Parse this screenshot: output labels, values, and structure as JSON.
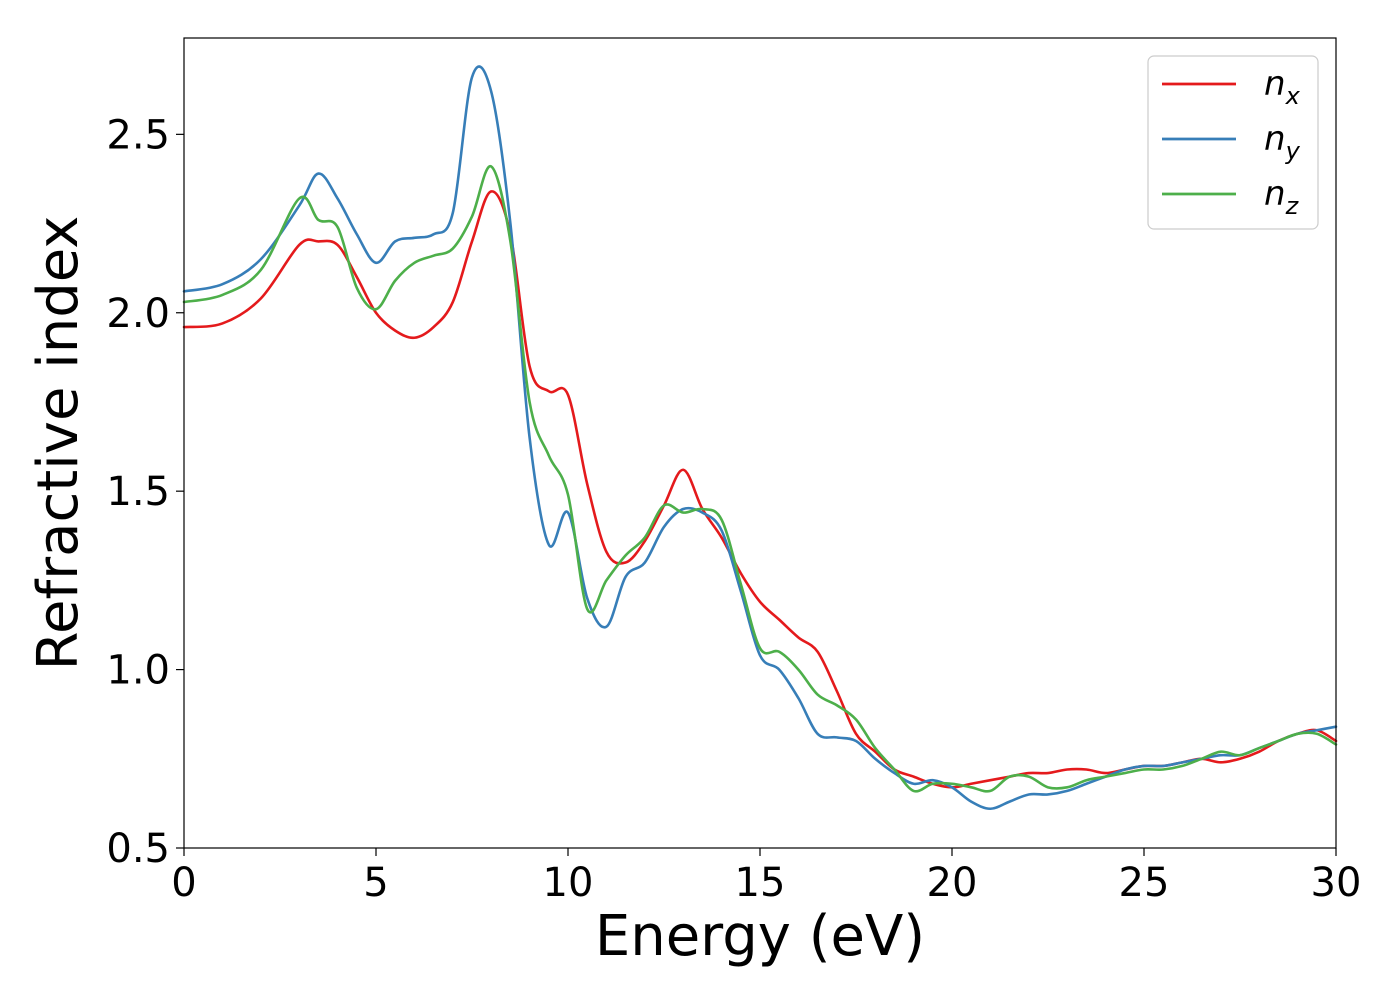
{
  "chart_data": {
    "type": "line",
    "title": "",
    "xlabel": "Energy (eV)",
    "ylabel": "Refractive index",
    "xlim": [
      0,
      30
    ],
    "ylim": [
      0.5,
      2.77
    ],
    "xticks": [
      0,
      5,
      10,
      15,
      20,
      25,
      30
    ],
    "xtick_labels": [
      "0",
      "5",
      "10",
      "15",
      "20",
      "25",
      "30"
    ],
    "yticks": [
      0.5,
      1.0,
      1.5,
      2.0,
      2.5
    ],
    "ytick_labels": [
      "0.5",
      "1.0",
      "1.5",
      "2.0",
      "2.5"
    ],
    "grid": false,
    "legend_position": "top-right",
    "series": [
      {
        "name": "n",
        "subscript": "x",
        "color": "#e41a1c",
        "x": [
          0,
          1,
          2,
          3,
          3.5,
          4,
          4.5,
          5,
          5.5,
          6,
          6.5,
          7,
          7.5,
          8,
          8.5,
          9,
          9.5,
          10,
          10.5,
          11,
          11.5,
          12,
          12.5,
          13,
          13.5,
          14,
          14.5,
          15,
          15.5,
          16,
          16.5,
          17,
          17.5,
          18,
          18.5,
          19,
          19.5,
          20,
          20.5,
          21,
          21.5,
          22,
          22.5,
          23,
          23.5,
          24,
          24.5,
          25,
          25.5,
          26,
          26.5,
          27,
          27.5,
          28,
          28.5,
          29,
          29.5,
          30
        ],
        "y": [
          1.96,
          1.97,
          2.04,
          2.19,
          2.2,
          2.19,
          2.1,
          2.0,
          1.95,
          1.93,
          1.96,
          2.03,
          2.2,
          2.34,
          2.22,
          1.85,
          1.78,
          1.77,
          1.52,
          1.33,
          1.3,
          1.36,
          1.46,
          1.56,
          1.45,
          1.37,
          1.27,
          1.19,
          1.14,
          1.09,
          1.05,
          0.94,
          0.82,
          0.77,
          0.72,
          0.7,
          0.68,
          0.67,
          0.68,
          0.69,
          0.7,
          0.71,
          0.71,
          0.72,
          0.72,
          0.71,
          0.72,
          0.73,
          0.73,
          0.74,
          0.75,
          0.74,
          0.75,
          0.77,
          0.8,
          0.82,
          0.83,
          0.8
        ]
      },
      {
        "name": "n",
        "subscript": "y",
        "color": "#377eb8",
        "x": [
          0,
          1,
          2,
          3,
          3.5,
          4,
          4.5,
          5,
          5.5,
          6,
          6.5,
          7,
          7.5,
          8,
          8.5,
          9,
          9.5,
          10,
          10.5,
          11,
          11.5,
          12,
          12.5,
          13,
          13.5,
          14,
          14.5,
          15,
          15.5,
          16,
          16.5,
          17,
          17.5,
          18,
          18.5,
          19,
          19.5,
          20,
          20.5,
          21,
          21.5,
          22,
          22.5,
          23,
          23.5,
          24,
          24.5,
          25,
          25.5,
          26,
          26.5,
          27,
          27.5,
          28,
          28.5,
          29,
          29.5,
          30
        ],
        "y": [
          2.06,
          2.08,
          2.15,
          2.3,
          2.39,
          2.32,
          2.22,
          2.14,
          2.2,
          2.21,
          2.22,
          2.28,
          2.66,
          2.62,
          2.25,
          1.65,
          1.35,
          1.44,
          1.2,
          1.12,
          1.26,
          1.3,
          1.4,
          1.45,
          1.44,
          1.39,
          1.22,
          1.04,
          1.0,
          0.92,
          0.82,
          0.81,
          0.8,
          0.75,
          0.71,
          0.68,
          0.69,
          0.67,
          0.63,
          0.61,
          0.63,
          0.65,
          0.65,
          0.66,
          0.68,
          0.7,
          0.72,
          0.73,
          0.73,
          0.74,
          0.75,
          0.76,
          0.76,
          0.78,
          0.8,
          0.82,
          0.83,
          0.84
        ]
      },
      {
        "name": "n",
        "subscript": "z",
        "color": "#4daf4a",
        "x": [
          0,
          1,
          2,
          3,
          3.5,
          4,
          4.5,
          5,
          5.5,
          6,
          6.5,
          7,
          7.5,
          8,
          8.5,
          9,
          9.5,
          10,
          10.5,
          11,
          11.5,
          12,
          12.5,
          13,
          13.5,
          14,
          14.5,
          15,
          15.5,
          16,
          16.5,
          17,
          17.5,
          18,
          18.5,
          19,
          19.5,
          20,
          20.5,
          21,
          21.5,
          22,
          22.5,
          23,
          23.5,
          24,
          24.5,
          25,
          25.5,
          26,
          26.5,
          27,
          27.5,
          28,
          28.5,
          29,
          29.5,
          30
        ],
        "y": [
          2.03,
          2.05,
          2.12,
          2.32,
          2.26,
          2.24,
          2.07,
          2.01,
          2.09,
          2.14,
          2.16,
          2.18,
          2.27,
          2.41,
          2.2,
          1.75,
          1.6,
          1.49,
          1.17,
          1.25,
          1.32,
          1.37,
          1.46,
          1.44,
          1.45,
          1.42,
          1.24,
          1.06,
          1.05,
          1.0,
          0.93,
          0.9,
          0.86,
          0.78,
          0.72,
          0.66,
          0.68,
          0.68,
          0.67,
          0.66,
          0.7,
          0.7,
          0.67,
          0.67,
          0.69,
          0.7,
          0.71,
          0.72,
          0.72,
          0.73,
          0.75,
          0.77,
          0.76,
          0.78,
          0.8,
          0.82,
          0.82,
          0.79
        ]
      }
    ]
  }
}
